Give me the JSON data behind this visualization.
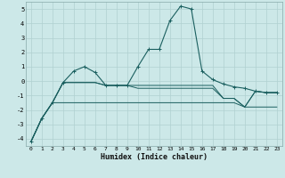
{
  "xlabel": "Humidex (Indice chaleur)",
  "x": [
    0,
    1,
    2,
    3,
    4,
    5,
    6,
    7,
    8,
    9,
    10,
    11,
    12,
    13,
    14,
    15,
    16,
    17,
    18,
    19,
    20,
    21,
    22,
    23
  ],
  "line_main": [
    -4.2,
    -2.6,
    -1.5,
    -0.1,
    0.7,
    1.0,
    0.6,
    -0.3,
    -0.3,
    -0.3,
    1.0,
    2.2,
    2.2,
    4.2,
    5.2,
    5.0,
    0.7,
    0.1,
    -0.2,
    -0.4,
    -0.5,
    -0.7,
    -0.8,
    -0.8
  ],
  "line_a": [
    -4.2,
    -2.6,
    -1.5,
    -0.1,
    -0.1,
    -0.1,
    -0.1,
    -0.3,
    -0.3,
    -0.3,
    -0.3,
    -0.3,
    -0.3,
    -0.3,
    -0.3,
    -0.3,
    -0.3,
    -0.3,
    -1.2,
    -1.2,
    -1.8,
    -0.7,
    -0.8,
    -0.8
  ],
  "line_b": [
    -4.2,
    -2.6,
    -1.5,
    -0.1,
    -0.1,
    -0.1,
    -0.1,
    -0.3,
    -0.3,
    -0.3,
    -0.5,
    -0.5,
    -0.5,
    -0.5,
    -0.5,
    -0.5,
    -0.5,
    -0.5,
    -1.2,
    -1.2,
    -1.8,
    -0.7,
    -0.8,
    -0.8
  ],
  "line_c": [
    -4.2,
    -2.6,
    -1.5,
    -1.5,
    -1.5,
    -1.5,
    -1.5,
    -1.5,
    -1.5,
    -1.5,
    -1.5,
    -1.5,
    -1.5,
    -1.5,
    -1.5,
    -1.5,
    -1.5,
    -1.5,
    -1.5,
    -1.5,
    -1.8,
    -1.8,
    -1.8,
    -1.8
  ],
  "ylim": [
    -4.5,
    5.5
  ],
  "xlim": [
    -0.5,
    23.5
  ],
  "bg_color": "#cce8e8",
  "grid_color": "#b0d0d0",
  "line_color": "#1a5f5f",
  "xlabel_fontsize": 6,
  "ytick_fontsize": 5,
  "xtick_fontsize": 4.5
}
